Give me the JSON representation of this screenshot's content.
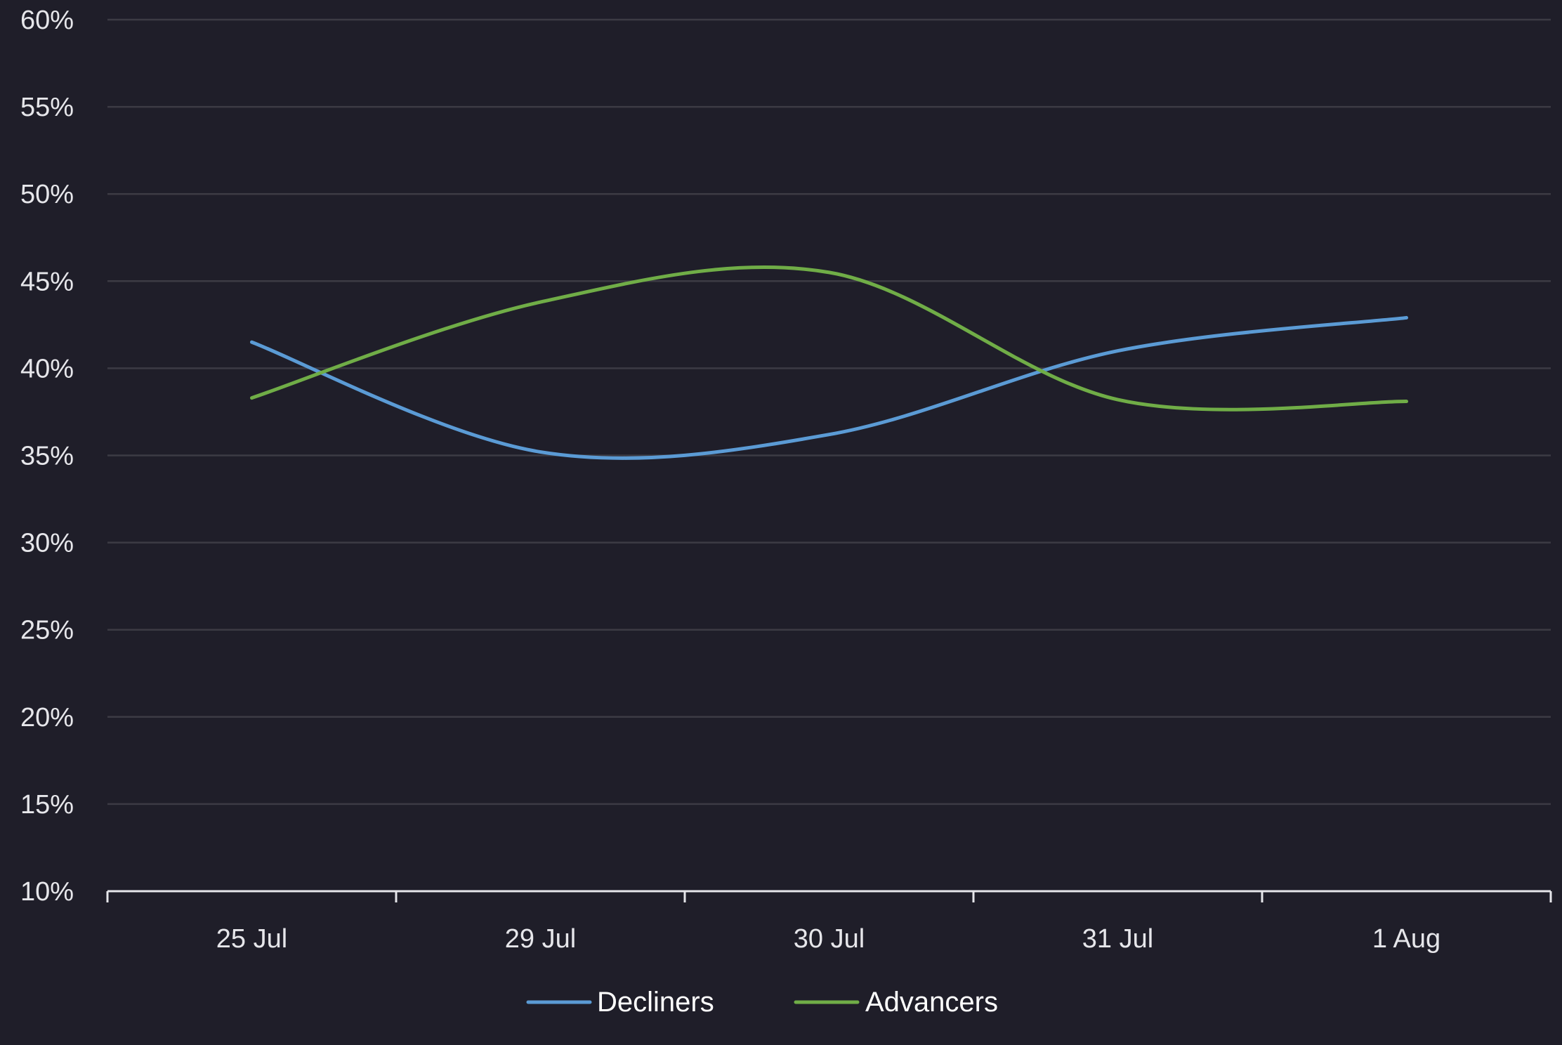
{
  "chart_data": {
    "type": "line",
    "title": "",
    "xlabel": "",
    "ylabel": "",
    "categories": [
      "25 Jul",
      "29 Jul",
      "30 Jul",
      "31 Jul",
      "1 Aug"
    ],
    "ylim": [
      10,
      60
    ],
    "y_ticks": [
      "10%",
      "15%",
      "20%",
      "25%",
      "30%",
      "35%",
      "40%",
      "45%",
      "50%",
      "55%",
      "60%"
    ],
    "y_tick_values": [
      10,
      15,
      20,
      25,
      30,
      35,
      40,
      45,
      50,
      55,
      60
    ],
    "grid": true,
    "legend_position": "bottom",
    "series": [
      {
        "name": "Decliners",
        "color": "#5b9bd5",
        "values": [
          41.5,
          35.2,
          36.2,
          41.0,
          42.9
        ]
      },
      {
        "name": "Advancers",
        "color": "#70ad47",
        "values": [
          38.3,
          43.8,
          45.5,
          38.2,
          38.1
        ]
      }
    ]
  },
  "colors": {
    "background": "#1f1e29",
    "grid": "#3c3b44",
    "axis": "#e6e6ea",
    "text": "#e6e6ea"
  }
}
